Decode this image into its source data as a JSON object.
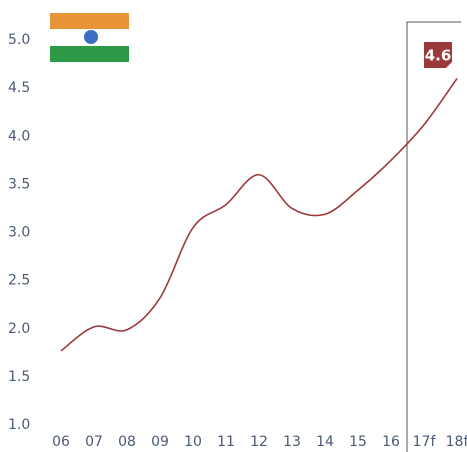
{
  "chart_data": {
    "type": "line",
    "categories": [
      "06",
      "07",
      "08",
      "09",
      "10",
      "11",
      "12",
      "13",
      "14",
      "15",
      "16",
      "17f",
      "18f"
    ],
    "series": [
      {
        "name": null,
        "color": "#9b3a3a",
        "values": [
          1.77,
          2.02,
          1.99,
          2.32,
          3.05,
          3.29,
          3.6,
          3.25,
          3.19,
          3.44,
          3.75,
          4.12,
          4.6
        ]
      }
    ],
    "ylim": [
      1.0,
      5.0
    ],
    "yticks": [
      {
        "value": 1.0,
        "label": "1.0"
      },
      {
        "value": 1.5,
        "label": "1.5"
      },
      {
        "value": 2.0,
        "label": "2.0"
      },
      {
        "value": 2.5,
        "label": "2.5"
      },
      {
        "value": 3.0,
        "label": "3.0"
      },
      {
        "value": 3.5,
        "label": "3.5"
      },
      {
        "value": 4.0,
        "label": "4.0"
      },
      {
        "value": 4.5,
        "label": "4.5"
      },
      {
        "value": 5.0,
        "label": "5.0"
      }
    ],
    "grid": false
  }
}
